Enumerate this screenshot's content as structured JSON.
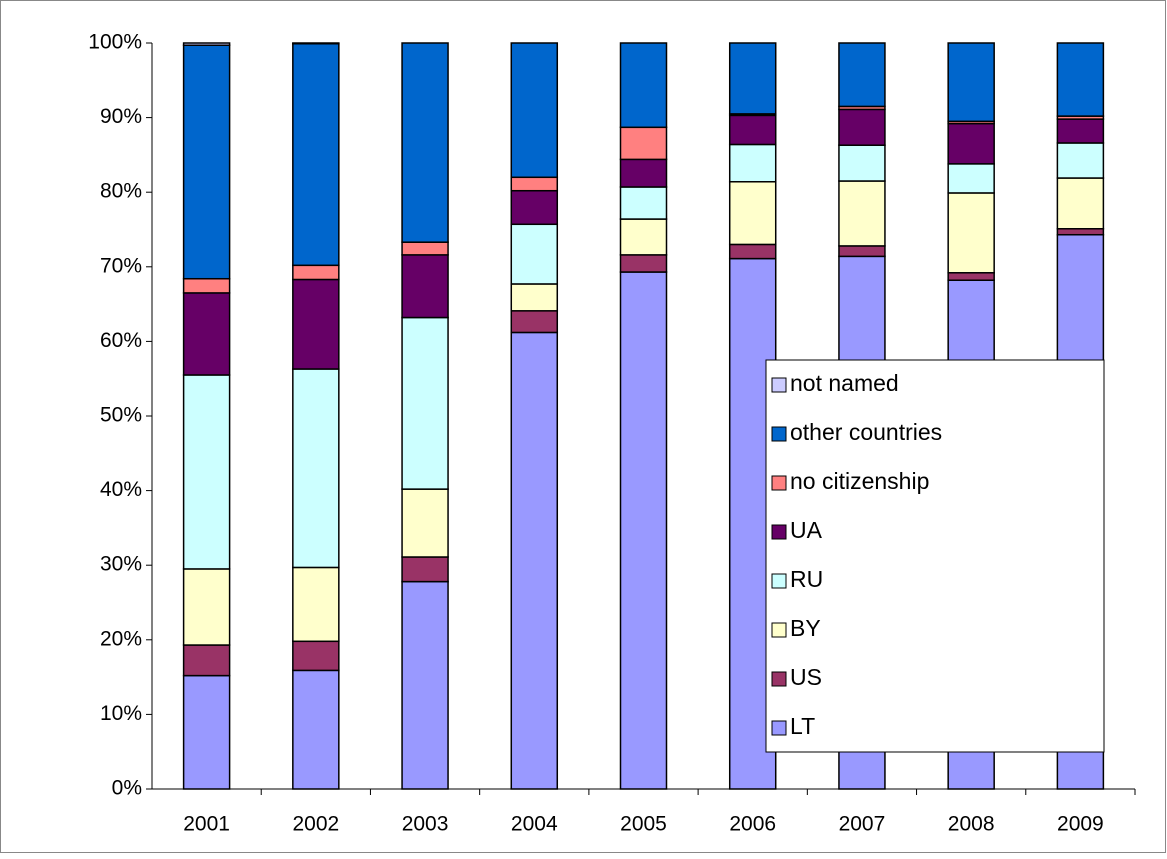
{
  "chart_data": {
    "type": "stacked_bar",
    "categories": [
      "2001",
      "2002",
      "2003",
      "2004",
      "2005",
      "2006",
      "2007",
      "2008",
      "2009"
    ],
    "series": [
      {
        "name": "LT",
        "color": "#9999ff",
        "values": [
          15.2,
          15.9,
          27.8,
          61.2,
          69.3,
          71.1,
          71.4,
          68.2,
          74.3
        ]
      },
      {
        "name": "US",
        "color": "#993366",
        "values": [
          4.1,
          3.9,
          3.3,
          2.9,
          2.3,
          1.9,
          1.4,
          1.0,
          0.8
        ]
      },
      {
        "name": "BY",
        "color": "#ffffcc",
        "values": [
          10.2,
          9.9,
          9.1,
          3.6,
          4.8,
          8.4,
          8.7,
          10.7,
          6.8
        ]
      },
      {
        "name": "RU",
        "color": "#ccffff",
        "values": [
          26.0,
          26.6,
          23.0,
          8.0,
          4.3,
          5.0,
          4.8,
          3.9,
          4.7
        ]
      },
      {
        "name": "UA",
        "color": "#660066",
        "values": [
          11.0,
          12.0,
          8.4,
          4.5,
          3.7,
          3.9,
          4.8,
          5.4,
          3.2
        ]
      },
      {
        "name": "no citizenship",
        "color": "#ff8080",
        "values": [
          1.9,
          1.9,
          1.7,
          1.8,
          4.3,
          0.2,
          0.4,
          0.3,
          0.4
        ]
      },
      {
        "name": "other countries",
        "color": "#0066cc",
        "values": [
          31.3,
          29.7,
          26.7,
          18.0,
          11.3,
          9.5,
          8.5,
          10.5,
          9.8
        ]
      },
      {
        "name": "not named",
        "color": "#ccccff",
        "values": [
          0.3,
          0.1,
          0,
          0,
          0,
          0,
          0,
          0,
          0
        ]
      }
    ],
    "ylim": [
      0,
      100
    ],
    "yticks": [
      {
        "value": 0,
        "label": "0%"
      },
      {
        "value": 10,
        "label": "10%"
      },
      {
        "value": 20,
        "label": "20%"
      },
      {
        "value": 30,
        "label": "30%"
      },
      {
        "value": 40,
        "label": "40%"
      },
      {
        "value": 50,
        "label": "50%"
      },
      {
        "value": 60,
        "label": "60%"
      },
      {
        "value": 70,
        "label": "70%"
      },
      {
        "value": 80,
        "label": "80%"
      },
      {
        "value": 90,
        "label": "90%"
      },
      {
        "value": 100,
        "label": "100%"
      }
    ],
    "grid": false,
    "legend": "right"
  }
}
